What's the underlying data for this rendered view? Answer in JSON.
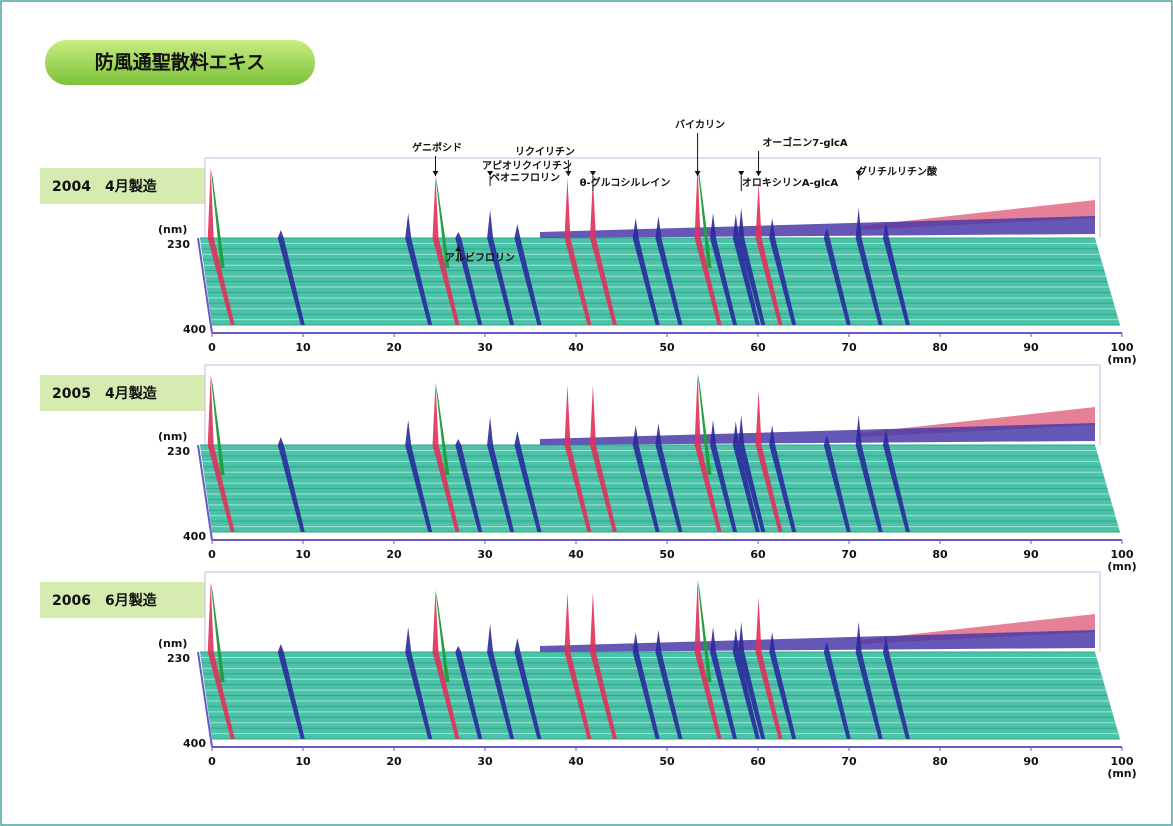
{
  "title": "防風通聖散料エキス",
  "panels": [
    {
      "label": "2004　4月製造"
    },
    {
      "label": "2005　4月製造"
    },
    {
      "label": "2006　6月製造"
    }
  ],
  "axis": {
    "xticks": [
      0,
      10,
      20,
      30,
      40,
      50,
      60,
      70,
      80,
      90,
      100
    ],
    "x_unit": "(mn)",
    "y_unit": "(nm)",
    "yticks": [
      230,
      400
    ]
  },
  "annotations": [
    {
      "text": "ゲニポシド",
      "x": 25
    },
    {
      "text": "アルビフロリン",
      "x": 27.5
    },
    {
      "text": "ペオニフロリン",
      "x": 31
    },
    {
      "text": "リクイリチン",
      "x": 39.6
    },
    {
      "text": "アピオリクイリチン",
      "x": 39.4
    },
    {
      "text": "θ-グルコシルレイン",
      "x": 42.3
    },
    {
      "text": "バイカリン",
      "x": 53.8
    },
    {
      "text": "オーゴニン7-glcA",
      "x": 60.5
    },
    {
      "text": "オロキシリンA-glcA",
      "x": 58.6
    },
    {
      "text": "グリチルリチン酸",
      "x": 71.5
    }
  ],
  "peaks": [
    {
      "x": 0.3,
      "h": 70
    },
    {
      "x": 8,
      "h": 8
    },
    {
      "x": 22,
      "h": 25
    },
    {
      "x": 25,
      "h": 62
    },
    {
      "x": 27.5,
      "h": 6
    },
    {
      "x": 31,
      "h": 28
    },
    {
      "x": 34,
      "h": 14
    },
    {
      "x": 39.5,
      "h": 60
    },
    {
      "x": 42.3,
      "h": 60
    },
    {
      "x": 47,
      "h": 20
    },
    {
      "x": 49.5,
      "h": 22
    },
    {
      "x": 53.8,
      "h": 72
    },
    {
      "x": 55.5,
      "h": 25
    },
    {
      "x": 58,
      "h": 24
    },
    {
      "x": 58.6,
      "h": 30
    },
    {
      "x": 60.5,
      "h": 55
    },
    {
      "x": 62,
      "h": 20
    },
    {
      "x": 68,
      "h": 10
    },
    {
      "x": 71.5,
      "h": 30
    },
    {
      "x": 74.5,
      "h": 16
    }
  ]
}
